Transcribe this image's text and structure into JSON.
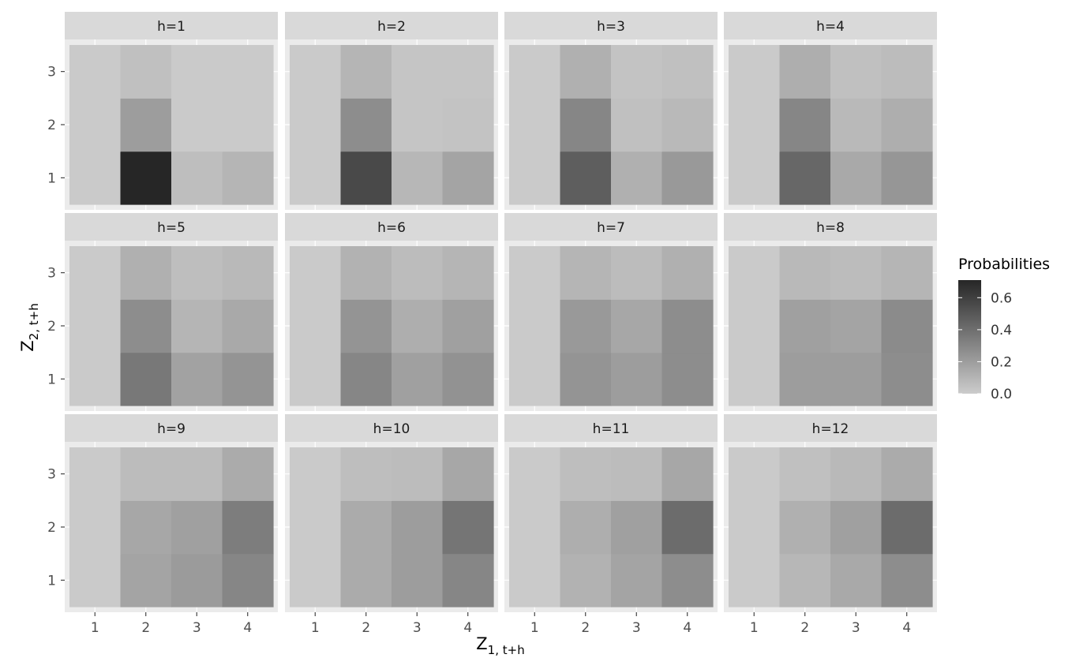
{
  "chart_data": {
    "type": "heatmap",
    "xlabel": {
      "main": "Z",
      "sub": "1, t+h"
    },
    "ylabel": {
      "main": "Z",
      "sub": "2, t+h"
    },
    "x_categories": [
      "1",
      "2",
      "3",
      "4"
    ],
    "y_categories": [
      "1",
      "2",
      "3"
    ],
    "legend": {
      "title": "Probabilities",
      "placement": "right",
      "ticks": [
        "0.0",
        "0.2",
        "0.4",
        "0.6"
      ],
      "tick_values": [
        0.0,
        0.2,
        0.4,
        0.6
      ],
      "range": [
        0,
        0.71
      ]
    },
    "colors": {
      "low": "#cccccc",
      "high": "#262626",
      "panel_bg": "#ebebeb",
      "strip_bg": "#d9d9d9",
      "grid": "#ffffff"
    },
    "panels": [
      {
        "label": "h=1",
        "values": [
          [
            0.01,
            0.71,
            0.06,
            0.1
          ],
          [
            0.01,
            0.2,
            0.01,
            0.01
          ],
          [
            0.01,
            0.05,
            0.01,
            0.01
          ]
        ]
      },
      {
        "label": "h=2",
        "values": [
          [
            0.01,
            0.56,
            0.09,
            0.17
          ],
          [
            0.01,
            0.27,
            0.03,
            0.04
          ],
          [
            0.01,
            0.1,
            0.03,
            0.03
          ]
        ]
      },
      {
        "label": "h=3",
        "values": [
          [
            0.01,
            0.47,
            0.12,
            0.22
          ],
          [
            0.01,
            0.3,
            0.05,
            0.08
          ],
          [
            0.01,
            0.12,
            0.04,
            0.05
          ]
        ]
      },
      {
        "label": "h=4",
        "values": [
          [
            0.01,
            0.43,
            0.15,
            0.23
          ],
          [
            0.01,
            0.3,
            0.08,
            0.13
          ],
          [
            0.01,
            0.13,
            0.05,
            0.07
          ]
        ]
      },
      {
        "label": "h=5",
        "values": [
          [
            0.01,
            0.36,
            0.18,
            0.24
          ],
          [
            0.01,
            0.27,
            0.1,
            0.15
          ],
          [
            0.01,
            0.12,
            0.06,
            0.08
          ]
        ]
      },
      {
        "label": "h=6",
        "values": [
          [
            0.01,
            0.3,
            0.19,
            0.25
          ],
          [
            0.01,
            0.24,
            0.13,
            0.19
          ],
          [
            0.01,
            0.11,
            0.07,
            0.1
          ]
        ]
      },
      {
        "label": "h=7",
        "values": [
          [
            0.01,
            0.24,
            0.2,
            0.27
          ],
          [
            0.01,
            0.22,
            0.16,
            0.27
          ],
          [
            0.01,
            0.1,
            0.07,
            0.12
          ]
        ]
      },
      {
        "label": "h=8",
        "values": [
          [
            0.01,
            0.2,
            0.2,
            0.27
          ],
          [
            0.01,
            0.19,
            0.17,
            0.28
          ],
          [
            0.01,
            0.08,
            0.07,
            0.1
          ]
        ]
      },
      {
        "label": "h=9",
        "values": [
          [
            0.01,
            0.17,
            0.21,
            0.3
          ],
          [
            0.01,
            0.16,
            0.19,
            0.34
          ],
          [
            0.01,
            0.07,
            0.07,
            0.14
          ]
        ]
      },
      {
        "label": "h=10",
        "values": [
          [
            0.01,
            0.14,
            0.2,
            0.3
          ],
          [
            0.01,
            0.14,
            0.2,
            0.37
          ],
          [
            0.01,
            0.06,
            0.07,
            0.16
          ]
        ]
      },
      {
        "label": "h=11",
        "values": [
          [
            0.01,
            0.11,
            0.17,
            0.27
          ],
          [
            0.01,
            0.13,
            0.19,
            0.41
          ],
          [
            0.01,
            0.06,
            0.07,
            0.16
          ]
        ]
      },
      {
        "label": "h=12",
        "values": [
          [
            0.01,
            0.09,
            0.15,
            0.27
          ],
          [
            0.01,
            0.12,
            0.19,
            0.41
          ],
          [
            0.01,
            0.05,
            0.08,
            0.14
          ]
        ]
      }
    ]
  }
}
